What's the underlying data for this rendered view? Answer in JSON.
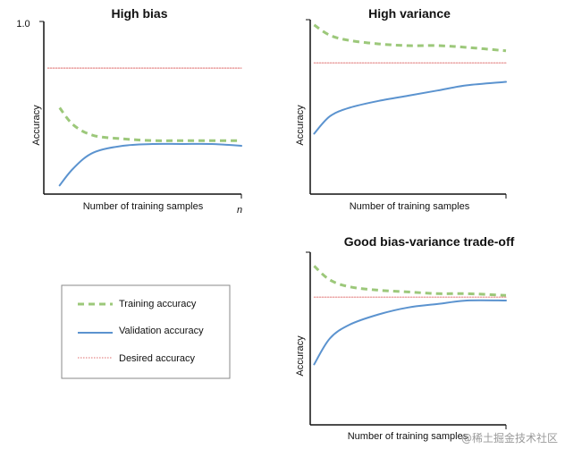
{
  "chart_data": [
    {
      "type": "line",
      "title": "High bias",
      "xlabel": "Number of training samples",
      "ylabel": "Accuracy",
      "y_tick_label": "1.0",
      "x_tick_label": "n",
      "ylim": [
        0,
        1
      ],
      "xlim": [
        0,
        1
      ],
      "series": [
        {
          "key": "training",
          "x": [
            0.08,
            0.15,
            0.25,
            0.4,
            0.55,
            0.7,
            0.85,
            1.0
          ],
          "y": [
            0.5,
            0.4,
            0.34,
            0.32,
            0.31,
            0.31,
            0.31,
            0.31
          ]
        },
        {
          "key": "validation",
          "x": [
            0.08,
            0.15,
            0.25,
            0.4,
            0.55,
            0.7,
            0.85,
            1.0
          ],
          "y": [
            0.05,
            0.15,
            0.24,
            0.28,
            0.29,
            0.29,
            0.29,
            0.28
          ]
        },
        {
          "key": "desired",
          "x": [
            0.02,
            1.0
          ],
          "y": [
            0.73,
            0.73
          ]
        }
      ]
    },
    {
      "type": "line",
      "title": "High variance",
      "xlabel": "Number of training samples",
      "ylabel": "Accuracy",
      "ylim": [
        0,
        1
      ],
      "xlim": [
        0,
        1
      ],
      "series": [
        {
          "key": "training",
          "x": [
            0.02,
            0.1,
            0.2,
            0.35,
            0.5,
            0.65,
            0.8,
            1.0
          ],
          "y": [
            0.98,
            0.92,
            0.89,
            0.87,
            0.86,
            0.86,
            0.85,
            0.83
          ]
        },
        {
          "key": "validation",
          "x": [
            0.02,
            0.1,
            0.2,
            0.35,
            0.5,
            0.65,
            0.8,
            1.0
          ],
          "y": [
            0.35,
            0.45,
            0.5,
            0.54,
            0.57,
            0.6,
            0.63,
            0.65
          ]
        },
        {
          "key": "desired",
          "x": [
            0.02,
            1.0
          ],
          "y": [
            0.76,
            0.76
          ]
        }
      ]
    },
    {
      "type": "line",
      "title": "Good bias-variance trade-off",
      "xlabel": "Number of training samples",
      "ylabel": "Accuracy",
      "ylim": [
        0,
        1
      ],
      "xlim": [
        0,
        1
      ],
      "series": [
        {
          "key": "training",
          "x": [
            0.02,
            0.1,
            0.2,
            0.35,
            0.5,
            0.65,
            0.8,
            1.0
          ],
          "y": [
            0.92,
            0.84,
            0.8,
            0.78,
            0.77,
            0.76,
            0.76,
            0.75
          ]
        },
        {
          "key": "validation",
          "x": [
            0.02,
            0.1,
            0.2,
            0.35,
            0.5,
            0.65,
            0.8,
            1.0
          ],
          "y": [
            0.35,
            0.5,
            0.58,
            0.64,
            0.68,
            0.7,
            0.72,
            0.72
          ]
        },
        {
          "key": "desired",
          "x": [
            0.02,
            1.0
          ],
          "y": [
            0.74,
            0.74
          ]
        }
      ]
    }
  ],
  "legend": [
    {
      "key": "training",
      "label": "Training accuracy"
    },
    {
      "key": "validation",
      "label": "Validation accuracy"
    },
    {
      "key": "desired",
      "label": "Desired accuracy"
    }
  ],
  "styles": {
    "training": {
      "color": "#9cc87a",
      "dash": "7,5",
      "width": 3
    },
    "validation": {
      "color": "#5b93cf",
      "dash": "",
      "width": 2
    },
    "desired": {
      "color": "#e58a8a",
      "dash": "1.5,1.5",
      "width": 1.2
    }
  },
  "watermark": "@稀土掘金技术社区"
}
